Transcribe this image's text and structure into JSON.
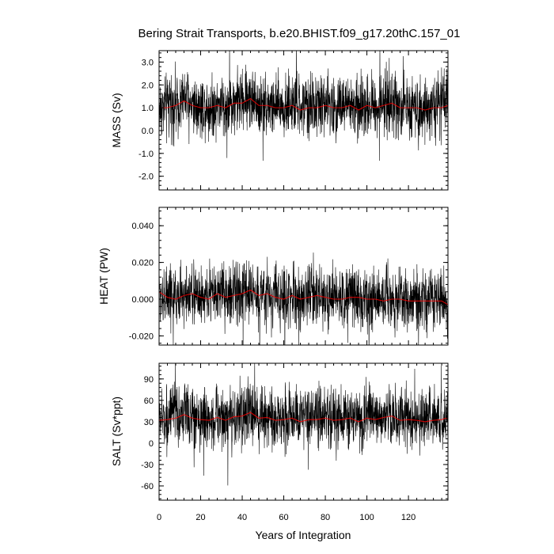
{
  "chart_data": {
    "title": "Bering Strait Transports, b.e20.BHIST.f09_g17.20thC.157_01",
    "xlabel": "Years of Integration",
    "x_ticks": [
      0,
      20,
      40,
      60,
      80,
      100,
      120
    ],
    "xlim": [
      0,
      139
    ],
    "raw_color": "#000000",
    "mean_color": "#ff0000",
    "panels": [
      {
        "id": "mass",
        "type": "line",
        "ylabel": "MASS (Sv)",
        "ylim": [
          -2.6,
          3.5
        ],
        "y_ticks": [
          3.0,
          2.0,
          1.0,
          0.0,
          -1.0,
          -2.0
        ],
        "y_tick_labels": [
          "3.0",
          "2.0",
          "1.0",
          "0.0",
          "-1.0",
          "-2.0"
        ],
        "mean_level": 1.0,
        "series": [
          {
            "style": "raw",
            "x": [
              0,
              4,
              8,
              12,
              16,
              20,
              24,
              28,
              32,
              36,
              40,
              44,
              48,
              52,
              56,
              60,
              64,
              68,
              72,
              76,
              80,
              84,
              88,
              92,
              96,
              100,
              104,
              108,
              112,
              116,
              120,
              124,
              128,
              132,
              136,
              139
            ],
            "y": [
              1.0,
              1.1,
              1.2,
              1.4,
              1.2,
              1.1,
              1.0,
              1.2,
              1.0,
              1.3,
              1.3,
              1.5,
              1.1,
              1.2,
              1.0,
              1.1,
              1.1,
              1.0,
              1.1,
              1.1,
              1.2,
              1.0,
              1.1,
              1.1,
              0.9,
              1.2,
              1.1,
              1.2,
              1.3,
              1.0,
              1.1,
              1.1,
              1.0,
              1.1,
              1.1,
              1.2
            ]
          },
          {
            "style": "running-mean",
            "x": [
              0,
              4,
              8,
              12,
              16,
              20,
              24,
              28,
              32,
              36,
              40,
              44,
              48,
              52,
              56,
              60,
              64,
              68,
              72,
              76,
              80,
              84,
              88,
              92,
              96,
              100,
              104,
              108,
              112,
              116,
              120,
              124,
              128,
              132,
              136,
              139
            ],
            "y": [
              1.0,
              1.0,
              1.1,
              1.3,
              1.1,
              1.0,
              1.0,
              1.1,
              1.0,
              1.2,
              1.2,
              1.4,
              1.1,
              1.1,
              1.0,
              1.0,
              1.1,
              0.9,
              1.0,
              1.0,
              1.1,
              1.0,
              1.0,
              1.1,
              0.9,
              1.1,
              1.0,
              1.1,
              1.2,
              1.0,
              1.0,
              1.0,
              0.9,
              1.0,
              1.0,
              1.1
            ]
          }
        ]
      },
      {
        "id": "heat",
        "type": "line",
        "ylabel": "HEAT (PW)",
        "ylim": [
          -0.025,
          0.05
        ],
        "y_ticks": [
          0.04,
          0.02,
          0.0,
          -0.02
        ],
        "y_tick_labels": [
          "0.040",
          "0.020",
          "0.000",
          "-0.020"
        ],
        "mean_level": 0.0,
        "series": [
          {
            "style": "raw",
            "x": [
              0,
              4,
              8,
              12,
              16,
              20,
              24,
              28,
              32,
              36,
              40,
              44,
              48,
              52,
              56,
              60,
              64,
              68,
              72,
              76,
              80,
              84,
              88,
              92,
              96,
              100,
              104,
              108,
              112,
              116,
              120,
              124,
              128,
              132,
              136,
              139
            ],
            "y": [
              0.003,
              0.002,
              0.001,
              0.002,
              0.003,
              0.002,
              0.001,
              0.003,
              0.002,
              0.002,
              0.003,
              0.005,
              0.002,
              0.003,
              0.001,
              0.001,
              0.002,
              0.001,
              0.002,
              0.002,
              0.001,
              0.0,
              0.001,
              0.002,
              0.0,
              0.001,
              0.0,
              -0.001,
              0.001,
              0.0,
              0.0,
              0.0,
              -0.001,
              0.0,
              0.0,
              -0.003
            ]
          },
          {
            "style": "running-mean",
            "x": [
              0,
              4,
              8,
              12,
              16,
              20,
              24,
              28,
              32,
              36,
              40,
              44,
              48,
              52,
              56,
              60,
              64,
              68,
              72,
              76,
              80,
              84,
              88,
              92,
              96,
              100,
              104,
              108,
              112,
              116,
              120,
              124,
              128,
              132,
              136,
              139
            ],
            "y": [
              0.004,
              0.001,
              0.0,
              0.002,
              0.003,
              0.001,
              0.0,
              0.003,
              0.001,
              0.002,
              0.003,
              0.005,
              0.002,
              0.003,
              0.001,
              0.0,
              0.002,
              0.0,
              0.001,
              0.002,
              0.001,
              0.0,
              0.0,
              0.001,
              0.001,
              0.0,
              0.0,
              -0.001,
              0.0,
              0.0,
              -0.001,
              -0.001,
              -0.001,
              -0.001,
              -0.001,
              -0.003
            ]
          }
        ]
      },
      {
        "id": "salt",
        "type": "line",
        "ylabel": "SALT (Sv*ppt)",
        "ylim": [
          -80,
          112
        ],
        "y_ticks": [
          90,
          60,
          30,
          0,
          -30,
          -60
        ],
        "y_tick_labels": [
          "90",
          "60",
          "30",
          "0",
          "-30",
          "-60"
        ],
        "mean_level": 33,
        "series": [
          {
            "style": "raw",
            "x": [
              0,
              4,
              8,
              12,
              16,
              20,
              24,
              28,
              32,
              36,
              40,
              44,
              48,
              52,
              56,
              60,
              64,
              68,
              72,
              76,
              80,
              84,
              88,
              92,
              96,
              100,
              104,
              108,
              112,
              116,
              120,
              124,
              128,
              132,
              136,
              139
            ],
            "y": [
              33,
              35,
              36,
              42,
              37,
              34,
              33,
              37,
              32,
              38,
              40,
              45,
              36,
              38,
              33,
              34,
              36,
              32,
              34,
              35,
              37,
              33,
              35,
              36,
              32,
              37,
              35,
              38,
              40,
              33,
              35,
              34,
              32,
              34,
              35,
              38
            ]
          },
          {
            "style": "running-mean",
            "x": [
              0,
              4,
              8,
              12,
              16,
              20,
              24,
              28,
              32,
              36,
              40,
              44,
              48,
              52,
              56,
              60,
              64,
              68,
              72,
              76,
              80,
              84,
              88,
              92,
              96,
              100,
              104,
              108,
              112,
              116,
              120,
              124,
              128,
              132,
              136,
              139
            ],
            "y": [
              32,
              33,
              35,
              40,
              35,
              33,
              32,
              36,
              32,
              37,
              38,
              43,
              35,
              36,
              32,
              33,
              35,
              30,
              33,
              33,
              35,
              32,
              33,
              35,
              30,
              35,
              33,
              36,
              38,
              32,
              33,
              32,
              30,
              32,
              33,
              36
            ]
          }
        ]
      }
    ]
  }
}
